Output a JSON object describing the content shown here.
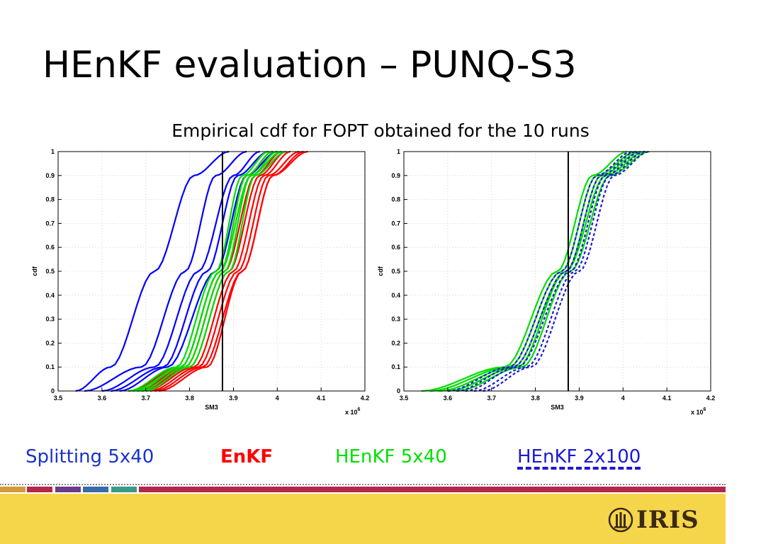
{
  "slide": {
    "title": "HEnKF evaluation – PUNQ-S3",
    "subtitle": "Empirical cdf for FOPT obtained for the 10 runs"
  },
  "legend": [
    {
      "label": "Splitting 5x40",
      "color": "#1a33c8"
    },
    {
      "label": "EnKF",
      "color": "#ff0000"
    },
    {
      "label": "HEnKF 5x40",
      "color": "#00e000"
    },
    {
      "label": "HEnKF 2x100",
      "color": "#1a1ad0"
    }
  ],
  "footer": {
    "logo_text": "IRIS",
    "background": "#f5d54a",
    "stripe_colors": [
      "#d39a3a",
      "#b2274a",
      "#6a3a8c",
      "#3a6aaa",
      "#3a9a8a",
      "#b2274a"
    ]
  },
  "chart_data": [
    {
      "type": "line",
      "title": "",
      "xlabel": "SM3",
      "ylabel": "cdf",
      "x_multiplier": "x 10^6",
      "xlim": [
        3.5,
        4.2
      ],
      "ylim": [
        0,
        1
      ],
      "xticks": [
        "3.5",
        "3.6",
        "3.7",
        "3.8",
        "3.9",
        "4",
        "4.1",
        "4.2"
      ],
      "yticks": [
        "0",
        "0.1",
        "0.2",
        "0.3",
        "0.4",
        "0.5",
        "0.6",
        "0.7",
        "0.8",
        "0.9",
        "1"
      ],
      "grid": true,
      "reference_line_x": 3.875,
      "series": [
        {
          "group": "Splitting 5x40",
          "color": "#0000ff",
          "min": 3.54,
          "p10": 3.62,
          "p50": 3.72,
          "p90": 3.81,
          "max": 3.89
        },
        {
          "group": "Splitting 5x40",
          "color": "#0000ff",
          "min": 3.56,
          "p10": 3.69,
          "p50": 3.79,
          "p90": 3.86,
          "max": 3.93
        },
        {
          "group": "Splitting 5x40",
          "color": "#0000ff",
          "min": 3.6,
          "p10": 3.72,
          "p50": 3.82,
          "p90": 3.9,
          "max": 3.96
        },
        {
          "group": "Splitting 5x40",
          "color": "#0000ff",
          "min": 3.62,
          "p10": 3.74,
          "p50": 3.84,
          "p90": 3.91,
          "max": 3.98
        },
        {
          "group": "Splitting 5x40",
          "color": "#0000ff",
          "min": 3.64,
          "p10": 3.75,
          "p50": 3.86,
          "p90": 3.93,
          "max": 4.0
        },
        {
          "group": "EnKF",
          "color": "#ff0000",
          "min": 3.66,
          "p10": 3.78,
          "p50": 3.87,
          "p90": 3.93,
          "max": 3.99
        },
        {
          "group": "EnKF",
          "color": "#ff0000",
          "min": 3.68,
          "p10": 3.79,
          "p50": 3.88,
          "p90": 3.95,
          "max": 4.01
        },
        {
          "group": "EnKF",
          "color": "#ff0000",
          "min": 3.69,
          "p10": 3.8,
          "p50": 3.89,
          "p90": 3.96,
          "max": 4.02
        },
        {
          "group": "EnKF",
          "color": "#ff0000",
          "min": 3.7,
          "p10": 3.81,
          "p50": 3.9,
          "p90": 3.97,
          "max": 4.03
        },
        {
          "group": "EnKF",
          "color": "#ff0000",
          "min": 3.71,
          "p10": 3.82,
          "p50": 3.91,
          "p90": 3.98,
          "max": 4.05
        },
        {
          "group": "EnKF",
          "color": "#ff0000",
          "min": 3.72,
          "p10": 3.83,
          "p50": 3.92,
          "p90": 3.99,
          "max": 4.07
        },
        {
          "group": "EnKF",
          "color": "#ff0000",
          "min": 3.73,
          "p10": 3.84,
          "p50": 3.92,
          "p90": 3.99,
          "max": 4.06
        },
        {
          "group": "HEnKF 5x40",
          "color": "#00dd00",
          "min": 3.66,
          "p10": 3.77,
          "p50": 3.86,
          "p90": 3.92,
          "max": 3.98
        },
        {
          "group": "HEnKF 5x40",
          "color": "#00dd00",
          "min": 3.67,
          "p10": 3.78,
          "p50": 3.87,
          "p90": 3.93,
          "max": 3.99
        },
        {
          "group": "HEnKF 5x40",
          "color": "#00dd00",
          "min": 3.68,
          "p10": 3.78,
          "p50": 3.87,
          "p90": 3.94,
          "max": 4.0
        },
        {
          "group": "HEnKF 5x40",
          "color": "#00dd00",
          "min": 3.69,
          "p10": 3.79,
          "p50": 3.88,
          "p90": 3.94,
          "max": 4.01
        },
        {
          "group": "HEnKF 5x40",
          "color": "#00dd00",
          "min": 3.7,
          "p10": 3.8,
          "p50": 3.89,
          "p90": 3.95,
          "max": 4.02
        }
      ]
    },
    {
      "type": "line",
      "title": "",
      "xlabel": "SM3",
      "ylabel": "cdf",
      "x_multiplier": "x 10^6",
      "xlim": [
        3.5,
        4.2
      ],
      "ylim": [
        0,
        1
      ],
      "xticks": [
        "3.5",
        "3.6",
        "3.7",
        "3.8",
        "3.9",
        "4",
        "4.1",
        "4.2"
      ],
      "yticks": [
        "0",
        "0.1",
        "0.2",
        "0.3",
        "0.4",
        "0.5",
        "0.6",
        "0.7",
        "0.8",
        "0.9",
        "1"
      ],
      "grid": true,
      "reference_line_x": 3.875,
      "series": [
        {
          "group": "HEnKF 5x40",
          "color": "#00dd00",
          "min": 3.54,
          "p10": 3.73,
          "p50": 3.85,
          "p90": 3.93,
          "max": 4.01
        },
        {
          "group": "HEnKF 5x40",
          "color": "#00dd00",
          "min": 3.56,
          "p10": 3.74,
          "p50": 3.86,
          "p90": 3.94,
          "max": 4.03
        },
        {
          "group": "HEnKF 5x40",
          "color": "#00dd00",
          "min": 3.58,
          "p10": 3.75,
          "p50": 3.87,
          "p90": 3.95,
          "max": 4.04
        },
        {
          "group": "HEnKF 5x40",
          "color": "#00dd00",
          "min": 3.6,
          "p10": 3.76,
          "p50": 3.87,
          "p90": 3.96,
          "max": 4.05
        },
        {
          "group": "HEnKF 5x40",
          "color": "#00dd00",
          "min": 3.62,
          "p10": 3.77,
          "p50": 3.88,
          "p90": 3.97,
          "max": 4.06
        },
        {
          "group": "HEnKF 2x100",
          "color": "#1a1ad0",
          "dashed": true,
          "min": 3.6,
          "p10": 3.74,
          "p50": 3.86,
          "p90": 3.94,
          "max": 4.02
        },
        {
          "group": "HEnKF 2x100",
          "color": "#1a1ad0",
          "dashed": true,
          "min": 3.62,
          "p10": 3.75,
          "p50": 3.87,
          "p90": 3.95,
          "max": 4.03
        },
        {
          "group": "HEnKF 2x100",
          "color": "#1a1ad0",
          "dashed": true,
          "min": 3.64,
          "p10": 3.76,
          "p50": 3.88,
          "p90": 3.96,
          "max": 4.04
        },
        {
          "group": "HEnKF 2x100",
          "color": "#1a1ad0",
          "dashed": true,
          "min": 3.66,
          "p10": 3.78,
          "p50": 3.89,
          "p90": 3.97,
          "max": 4.05
        },
        {
          "group": "HEnKF 2x100",
          "color": "#1a1ad0",
          "dashed": true,
          "min": 3.68,
          "p10": 3.79,
          "p50": 3.9,
          "p90": 3.98,
          "max": 4.06
        }
      ]
    }
  ]
}
